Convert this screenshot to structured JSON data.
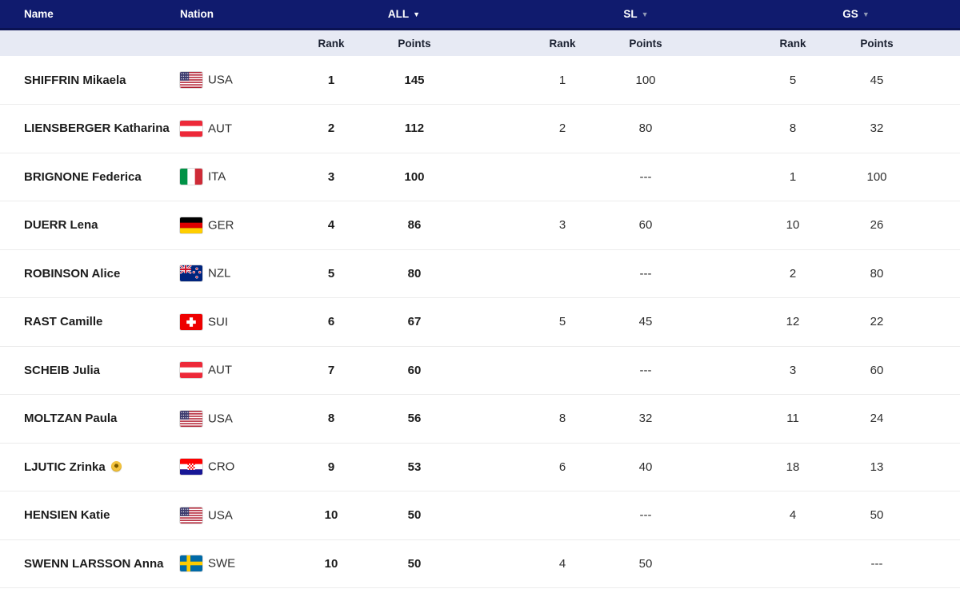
{
  "header": {
    "name_label": "Name",
    "nation_label": "Nation",
    "rank_label": "Rank",
    "points_label": "Points",
    "groups": [
      {
        "label": "ALL",
        "arrow": "▼",
        "active": true
      },
      {
        "label": "SL",
        "arrow": "▼",
        "active": false
      },
      {
        "label": "GS",
        "arrow": "▼",
        "active": false
      }
    ]
  },
  "empty_value": "---",
  "rows": [
    {
      "name": "SHIFFRIN Mikaela",
      "badge": "",
      "nation": "USA",
      "all_rank": "1",
      "all_points": "145",
      "sl_rank": "1",
      "sl_points": "100",
      "gs_rank": "5",
      "gs_points": "45"
    },
    {
      "name": "LIENSBERGER Katharina",
      "badge": "",
      "nation": "AUT",
      "all_rank": "2",
      "all_points": "112",
      "sl_rank": "2",
      "sl_points": "80",
      "gs_rank": "8",
      "gs_points": "32"
    },
    {
      "name": "BRIGNONE Federica",
      "badge": "",
      "nation": "ITA",
      "all_rank": "3",
      "all_points": "100",
      "sl_rank": "",
      "sl_points": "---",
      "gs_rank": "1",
      "gs_points": "100"
    },
    {
      "name": "DUERR Lena",
      "badge": "",
      "nation": "GER",
      "all_rank": "4",
      "all_points": "86",
      "sl_rank": "3",
      "sl_points": "60",
      "gs_rank": "10",
      "gs_points": "26"
    },
    {
      "name": "ROBINSON Alice",
      "badge": "",
      "nation": "NZL",
      "all_rank": "5",
      "all_points": "80",
      "sl_rank": "",
      "sl_points": "---",
      "gs_rank": "2",
      "gs_points": "80"
    },
    {
      "name": "RAST Camille",
      "badge": "",
      "nation": "SUI",
      "all_rank": "6",
      "all_points": "67",
      "sl_rank": "5",
      "sl_points": "45",
      "gs_rank": "12",
      "gs_points": "22"
    },
    {
      "name": "SCHEIB Julia",
      "badge": "",
      "nation": "AUT",
      "all_rank": "7",
      "all_points": "60",
      "sl_rank": "",
      "sl_points": "---",
      "gs_rank": "3",
      "gs_points": "60"
    },
    {
      "name": "MOLTZAN Paula",
      "badge": "",
      "nation": "USA",
      "all_rank": "8",
      "all_points": "56",
      "sl_rank": "8",
      "sl_points": "32",
      "gs_rank": "11",
      "gs_points": "24"
    },
    {
      "name": "LJUTIC Zrinka",
      "badge": "yellow-bib",
      "nation": "CRO",
      "all_rank": "9",
      "all_points": "53",
      "sl_rank": "6",
      "sl_points": "40",
      "gs_rank": "18",
      "gs_points": "13"
    },
    {
      "name": "HENSIEN Katie",
      "badge": "",
      "nation": "USA",
      "all_rank": "10",
      "all_points": "50",
      "sl_rank": "",
      "sl_points": "---",
      "gs_rank": "4",
      "gs_points": "50"
    },
    {
      "name": "SWENN LARSSON Anna",
      "badge": "",
      "nation": "SWE",
      "all_rank": "10",
      "all_points": "50",
      "sl_rank": "4",
      "sl_points": "50",
      "gs_rank": "",
      "gs_points": "---"
    }
  ],
  "colors": {
    "header_bg": "#101B6E",
    "header_border": "#0A1253",
    "subheader_bg": "#E7EAF4",
    "active_arrow": "#FFFFFF",
    "inactive_arrow": "#8F98B5",
    "row_separator": "#ECECEC",
    "leader_bib": "#F2C23E"
  }
}
